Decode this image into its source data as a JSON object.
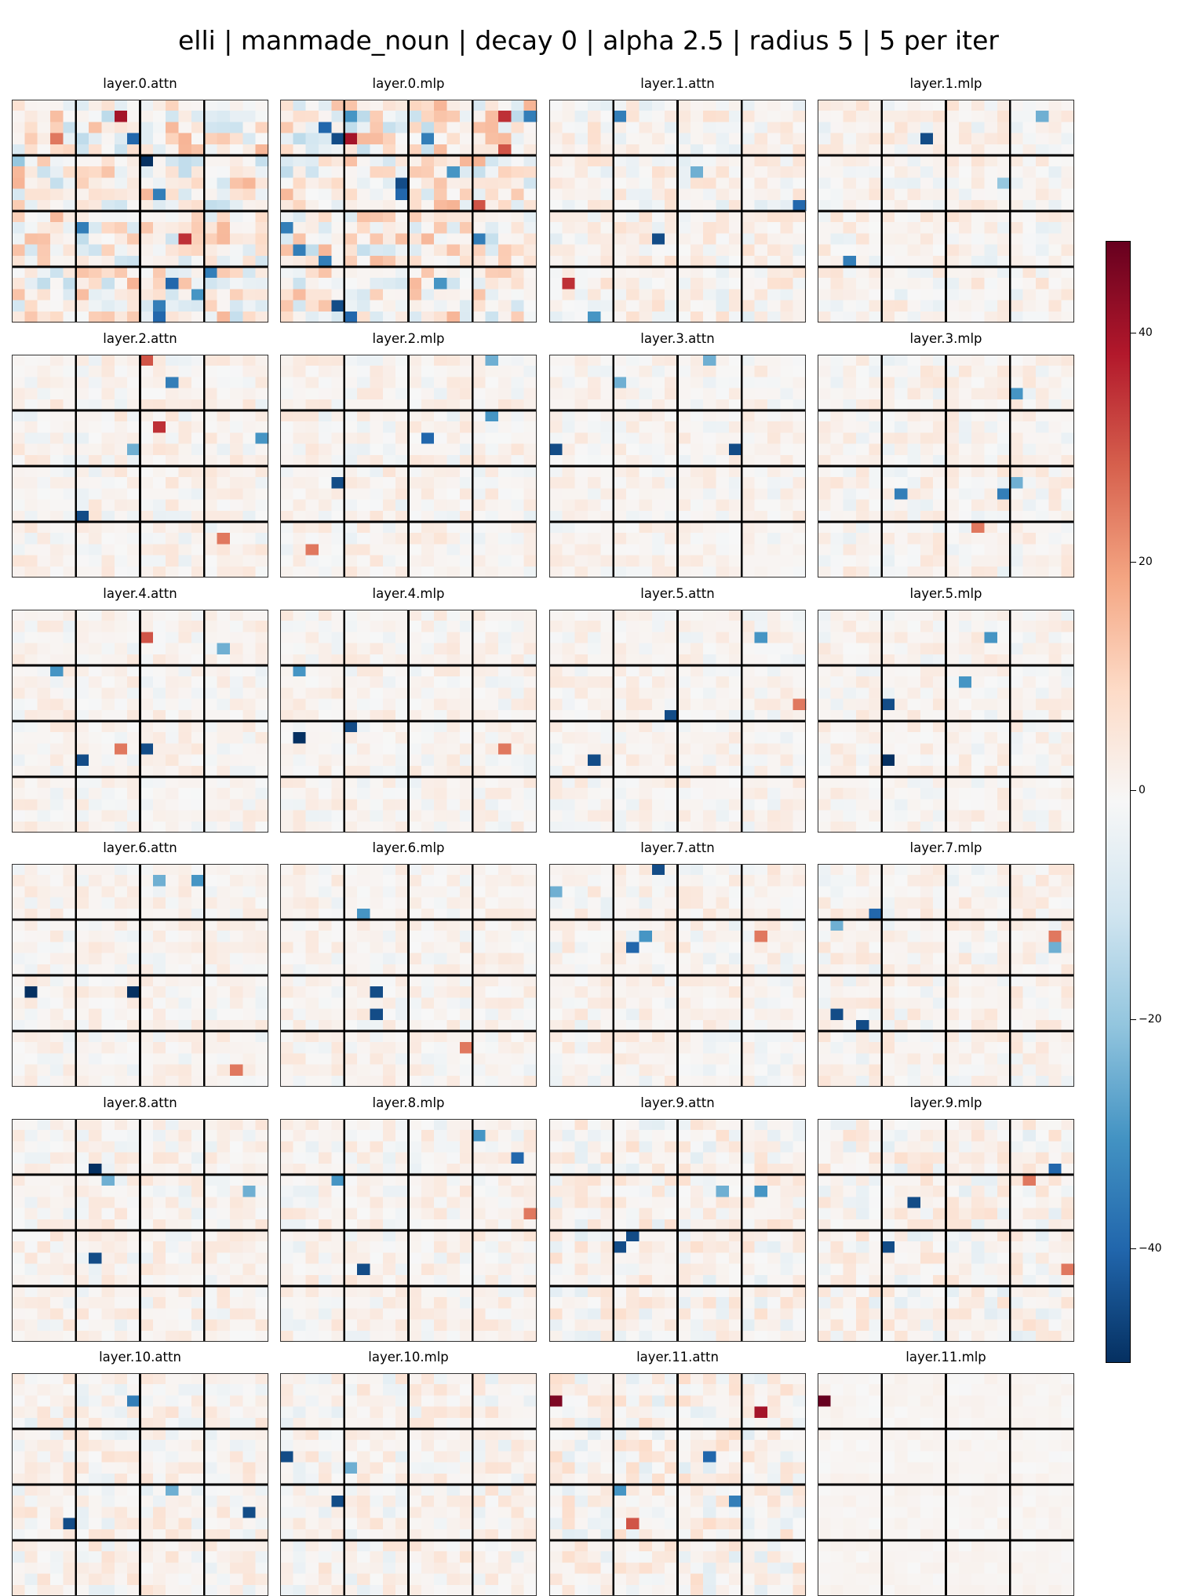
{
  "chart_data": {
    "type": "heatmap",
    "title": "elli | manmade_noun | decay 0 | alpha 2.5 | radius 5 | 5 per iter",
    "colormap": "RdBu_r",
    "colorbar": {
      "range": [
        -50,
        48
      ],
      "ticks": [
        40,
        20,
        0,
        -20,
        -40
      ],
      "tick_labels": [
        "40",
        "20",
        "0",
        "−20",
        "−40"
      ]
    },
    "grid_cells": [
      20,
      20
    ],
    "block_grid": [
      4,
      4
    ],
    "panel_titles": [
      "layer.0.attn",
      "layer.0.mlp",
      "layer.1.attn",
      "layer.1.mlp",
      "layer.2.attn",
      "layer.2.mlp",
      "layer.3.attn",
      "layer.3.mlp",
      "layer.4.attn",
      "layer.4.mlp",
      "layer.5.attn",
      "layer.5.mlp",
      "layer.6.attn",
      "layer.6.mlp",
      "layer.7.attn",
      "layer.7.mlp",
      "layer.8.attn",
      "layer.8.mlp",
      "layer.9.attn",
      "layer.9.mlp",
      "layer.10.attn",
      "layer.10.mlp",
      "layer.11.attn",
      "layer.11.mlp"
    ],
    "background_amplitude": [
      20,
      20,
      9,
      8,
      7,
      7,
      6,
      7,
      6,
      6,
      6,
      6,
      6,
      6,
      7,
      7,
      7,
      7,
      9,
      9,
      8,
      8,
      10,
      2
    ],
    "highlights": [
      [
        [
          1,
          8,
          40
        ],
        [
          3,
          3,
          25
        ],
        [
          3,
          9,
          -40
        ],
        [
          5,
          0,
          -20
        ],
        [
          5,
          10,
          -50
        ],
        [
          8,
          11,
          -35
        ],
        [
          11,
          5,
          -35
        ],
        [
          12,
          13,
          35
        ],
        [
          15,
          15,
          -35
        ],
        [
          16,
          12,
          -40
        ],
        [
          17,
          14,
          -30
        ],
        [
          18,
          11,
          -35
        ],
        [
          19,
          11,
          -40
        ]
      ],
      [
        [
          1,
          5,
          -30
        ],
        [
          1,
          17,
          35
        ],
        [
          1,
          19,
          -35
        ],
        [
          2,
          3,
          -40
        ],
        [
          3,
          4,
          -45
        ],
        [
          3,
          5,
          40
        ],
        [
          3,
          11,
          -35
        ],
        [
          4,
          17,
          30
        ],
        [
          6,
          13,
          -30
        ],
        [
          7,
          9,
          -45
        ],
        [
          8,
          9,
          -40
        ],
        [
          9,
          15,
          30
        ],
        [
          11,
          0,
          -35
        ],
        [
          12,
          15,
          -35
        ],
        [
          13,
          1,
          -35
        ],
        [
          14,
          3,
          -35
        ],
        [
          16,
          12,
          -30
        ],
        [
          18,
          4,
          -45
        ],
        [
          19,
          5,
          -40
        ]
      ],
      [
        [
          1,
          5,
          -35
        ],
        [
          6,
          11,
          -25
        ],
        [
          9,
          19,
          -40
        ],
        [
          12,
          8,
          -45
        ],
        [
          16,
          1,
          35
        ],
        [
          19,
          3,
          -30
        ]
      ],
      [
        [
          3,
          8,
          -45
        ],
        [
          1,
          17,
          -25
        ],
        [
          7,
          14,
          -20
        ],
        [
          14,
          2,
          -35
        ]
      ],
      [
        [
          0,
          10,
          30
        ],
        [
          2,
          12,
          -35
        ],
        [
          6,
          11,
          35
        ],
        [
          8,
          9,
          -25
        ],
        [
          7,
          19,
          -30
        ],
        [
          14,
          5,
          -45
        ],
        [
          16,
          16,
          25
        ]
      ],
      [
        [
          0,
          16,
          -25
        ],
        [
          5,
          16,
          -30
        ],
        [
          7,
          11,
          -40
        ],
        [
          11,
          4,
          -45
        ],
        [
          17,
          2,
          25
        ]
      ],
      [
        [
          0,
          12,
          -25
        ],
        [
          2,
          5,
          -25
        ],
        [
          8,
          0,
          -45
        ],
        [
          8,
          14,
          -45
        ]
      ],
      [
        [
          3,
          15,
          -30
        ],
        [
          12,
          6,
          -35
        ],
        [
          12,
          14,
          -35
        ],
        [
          11,
          15,
          -25
        ],
        [
          15,
          12,
          25
        ]
      ],
      [
        [
          2,
          10,
          30
        ],
        [
          3,
          16,
          -25
        ],
        [
          5,
          3,
          -30
        ],
        [
          13,
          5,
          -45
        ],
        [
          12,
          10,
          -45
        ],
        [
          12,
          8,
          25
        ]
      ],
      [
        [
          5,
          1,
          -30
        ],
        [
          10,
          5,
          -45
        ],
        [
          11,
          1,
          -50
        ],
        [
          12,
          17,
          25
        ]
      ],
      [
        [
          2,
          16,
          -30
        ],
        [
          9,
          9,
          -45
        ],
        [
          13,
          3,
          -45
        ],
        [
          8,
          19,
          25
        ]
      ],
      [
        [
          2,
          13,
          -30
        ],
        [
          6,
          11,
          -30
        ],
        [
          8,
          5,
          -45
        ],
        [
          13,
          5,
          -50
        ]
      ],
      [
        [
          1,
          14,
          -30
        ],
        [
          1,
          11,
          -25
        ],
        [
          11,
          1,
          -50
        ],
        [
          11,
          9,
          -50
        ],
        [
          18,
          17,
          25
        ]
      ],
      [
        [
          4,
          6,
          -30
        ],
        [
          11,
          7,
          -45
        ],
        [
          13,
          7,
          -45
        ],
        [
          16,
          14,
          25
        ]
      ],
      [
        [
          0,
          8,
          -45
        ],
        [
          6,
          7,
          -30
        ],
        [
          7,
          6,
          -40
        ],
        [
          2,
          0,
          -25
        ],
        [
          6,
          16,
          25
        ]
      ],
      [
        [
          4,
          4,
          -40
        ],
        [
          5,
          1,
          -25
        ],
        [
          6,
          18,
          25
        ],
        [
          7,
          18,
          -25
        ],
        [
          13,
          1,
          -45
        ],
        [
          14,
          3,
          -45
        ]
      ],
      [
        [
          4,
          6,
          -50
        ],
        [
          5,
          7,
          -25
        ],
        [
          12,
          6,
          -45
        ],
        [
          6,
          18,
          -25
        ]
      ],
      [
        [
          1,
          15,
          -30
        ],
        [
          5,
          4,
          -30
        ],
        [
          3,
          18,
          -40
        ],
        [
          8,
          19,
          25
        ],
        [
          13,
          6,
          -45
        ]
      ],
      [
        [
          11,
          5,
          -45
        ],
        [
          10,
          6,
          -45
        ],
        [
          6,
          13,
          -25
        ],
        [
          6,
          16,
          -30
        ]
      ],
      [
        [
          4,
          18,
          -40
        ],
        [
          5,
          16,
          25
        ],
        [
          7,
          7,
          -45
        ],
        [
          11,
          5,
          -45
        ],
        [
          13,
          19,
          25
        ]
      ],
      [
        [
          2,
          9,
          -35
        ],
        [
          12,
          18,
          -45
        ],
        [
          13,
          4,
          -45
        ],
        [
          10,
          12,
          -25
        ]
      ],
      [
        [
          7,
          0,
          -45
        ],
        [
          8,
          5,
          -25
        ],
        [
          11,
          4,
          -45
        ]
      ],
      [
        [
          2,
          0,
          45
        ],
        [
          3,
          16,
          40
        ],
        [
          7,
          12,
          -40
        ],
        [
          10,
          5,
          -30
        ],
        [
          11,
          14,
          -35
        ],
        [
          13,
          6,
          30
        ]
      ],
      [
        [
          2,
          0,
          48
        ]
      ]
    ]
  }
}
